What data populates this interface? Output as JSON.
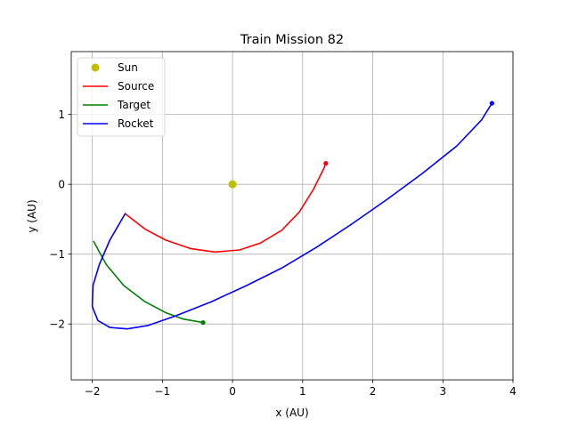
{
  "chart_data": {
    "type": "line",
    "title": "Train Mission 82",
    "xlabel": "x (AU)",
    "ylabel": "y (AU)",
    "xlim": [
      -2.3,
      4.0
    ],
    "ylim": [
      -2.8,
      1.9
    ],
    "xticks": [
      -2,
      -1,
      0,
      1,
      2,
      3,
      4
    ],
    "yticks": [
      -2,
      -1,
      0,
      1
    ],
    "xtick_labels": [
      "−2",
      "−1",
      "0",
      "1",
      "2",
      "3",
      "4"
    ],
    "ytick_labels": [
      "−2",
      "−1",
      "0",
      "1"
    ],
    "grid": true,
    "legend_position": "upper-left",
    "legend": [
      {
        "label": "Sun",
        "marker": "dot",
        "color": "#bfbf00"
      },
      {
        "label": "Source",
        "marker": "line",
        "color": "#ff0000"
      },
      {
        "label": "Target",
        "marker": "line",
        "color": "#008000"
      },
      {
        "label": "Rocket",
        "marker": "line",
        "color": "#0000ff"
      }
    ],
    "sun": {
      "x": 0,
      "y": 0,
      "color": "#bfbf00"
    },
    "series": [
      {
        "name": "Source",
        "color": "#ff0000",
        "x": [
          -1.52,
          -1.25,
          -0.95,
          -0.6,
          -0.25,
          0.1,
          0.4,
          0.7,
          0.95,
          1.15,
          1.3,
          1.33
        ],
        "y": [
          -0.43,
          -0.64,
          -0.8,
          -0.92,
          -0.97,
          -0.94,
          -0.84,
          -0.66,
          -0.4,
          -0.08,
          0.22,
          0.3
        ]
      },
      {
        "name": "Target",
        "color": "#008000",
        "x": [
          -1.98,
          -1.8,
          -1.55,
          -1.25,
          -0.95,
          -0.7,
          -0.42
        ],
        "y": [
          -0.82,
          -1.15,
          -1.45,
          -1.68,
          -1.84,
          -1.93,
          -1.98
        ]
      },
      {
        "name": "Rocket",
        "color": "#0000ff",
        "x": [
          -1.53,
          -1.75,
          -1.9,
          -1.99,
          -2.0,
          -1.92,
          -1.75,
          -1.5,
          -1.2,
          -0.8,
          -0.3,
          0.2,
          0.7,
          1.2,
          1.7,
          2.2,
          2.7,
          3.2,
          3.55,
          3.7
        ],
        "y": [
          -0.42,
          -0.8,
          -1.15,
          -1.45,
          -1.75,
          -1.95,
          -2.05,
          -2.07,
          -2.02,
          -1.88,
          -1.68,
          -1.45,
          -1.2,
          -0.9,
          -0.57,
          -0.22,
          0.15,
          0.55,
          0.92,
          1.16
        ]
      }
    ],
    "endpoints": [
      {
        "name": "Source",
        "x": 1.33,
        "y": 0.3,
        "color": "#ff0000"
      },
      {
        "name": "Target",
        "x": -0.42,
        "y": -1.98,
        "color": "#008000"
      },
      {
        "name": "Rocket",
        "x": 3.7,
        "y": 1.16,
        "color": "#0000ff"
      }
    ]
  }
}
